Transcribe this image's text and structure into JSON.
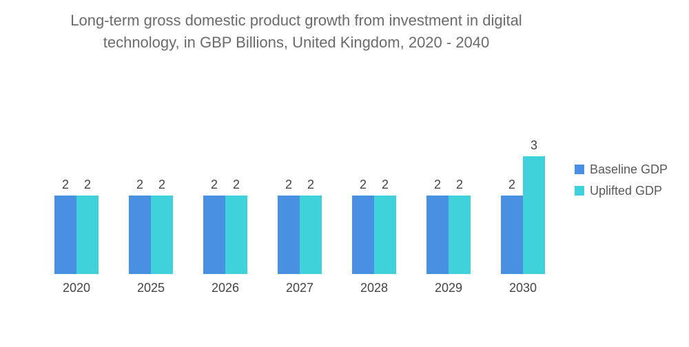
{
  "chart_data": {
    "type": "bar",
    "title_line1": "Long-term gross domestic product growth from investment in digital",
    "title_line2": "technology, in GBP Billions, United Kingdom, 2020 - 2040",
    "categories": [
      "2020",
      "2025",
      "2026",
      "2027",
      "2028",
      "2029",
      "2030"
    ],
    "series": [
      {
        "name": "Baseline GDP",
        "values": [
          2,
          2,
          2,
          2,
          2,
          2,
          2
        ],
        "color": "#4a90e2"
      },
      {
        "name": "Uplifted GDP",
        "values": [
          2,
          2,
          2,
          2,
          2,
          2,
          3
        ],
        "color": "#3fd2db"
      }
    ],
    "ylim": [
      0,
      3
    ],
    "grid": false,
    "legend_position": "right",
    "data_labels": true
  }
}
